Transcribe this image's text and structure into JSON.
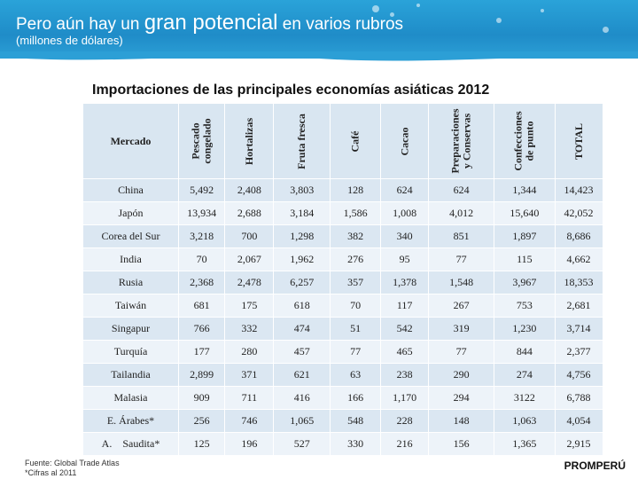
{
  "header": {
    "title_part1": "Pero aún hay un ",
    "title_part2": "gran potencial",
    "title_part3": " en varios rubros",
    "subtitle": "(millones de dólares)"
  },
  "table_title": "Importaciones de las principales economías asiáticas 2012",
  "columns": [
    "Mercado",
    "Pescado congelado",
    "Hortalizas",
    "Fruta fresca",
    "Café",
    "Cacao",
    "Preparaciones y Conservas",
    "Confecciones de punto",
    "TOTAL"
  ],
  "column_lines": [
    [
      "Mercado"
    ],
    [
      "Pescado",
      "congelado"
    ],
    [
      "Hortalizas"
    ],
    [
      "Fruta fresca"
    ],
    [
      "Café"
    ],
    [
      "Cacao"
    ],
    [
      "Preparaciones",
      "y Conservas"
    ],
    [
      "Confecciones",
      "de punto"
    ],
    [
      "TOTAL"
    ]
  ],
  "rows": [
    [
      "China",
      "5,492",
      "2,408",
      "3,803",
      "128",
      "624",
      "624",
      "1,344",
      "14,423"
    ],
    [
      "Japón",
      "13,934",
      "2,688",
      "3,184",
      "1,586",
      "1,008",
      "4,012",
      "15,640",
      "42,052"
    ],
    [
      "Corea del Sur",
      "3,218",
      "700",
      "1,298",
      "382",
      "340",
      "851",
      "1,897",
      "8,686"
    ],
    [
      "India",
      "70",
      "2,067",
      "1,962",
      "276",
      "95",
      "77",
      "115",
      "4,662"
    ],
    [
      "Rusia",
      "2,368",
      "2,478",
      "6,257",
      "357",
      "1,378",
      "1,548",
      "3,967",
      "18,353"
    ],
    [
      "Taiwán",
      "681",
      "175",
      "618",
      "70",
      "117",
      "267",
      "753",
      "2,681"
    ],
    [
      "Singapur",
      "766",
      "332",
      "474",
      "51",
      "542",
      "319",
      "1,230",
      "3,714"
    ],
    [
      "Turquía",
      "177",
      "280",
      "457",
      "77",
      "465",
      "77",
      "844",
      "2,377"
    ],
    [
      "Tailandia",
      "2,899",
      "371",
      "621",
      "63",
      "238",
      "290",
      "274",
      "4,756"
    ],
    [
      "Malasia",
      "909",
      "711",
      "416",
      "166",
      "1,170",
      "294",
      "3122",
      "6,788"
    ],
    [
      "E. Árabes*",
      "256",
      "746",
      "1,065",
      "548",
      "228",
      "148",
      "1,063",
      "4,054"
    ],
    [
      "A.    Saudita*",
      "125",
      "196",
      "527",
      "330",
      "216",
      "156",
      "1,365",
      "2,915"
    ]
  ],
  "footer": {
    "source": "Fuente: Global Trade Atlas",
    "note": "*Cifras al 2011"
  },
  "logo_text": "PROMPERÚ",
  "colors": {
    "banner": "#1f8cc8",
    "row_dark": "#dbe7f2",
    "row_light": "#edf3f9",
    "header_bg": "#d9e6f1"
  }
}
